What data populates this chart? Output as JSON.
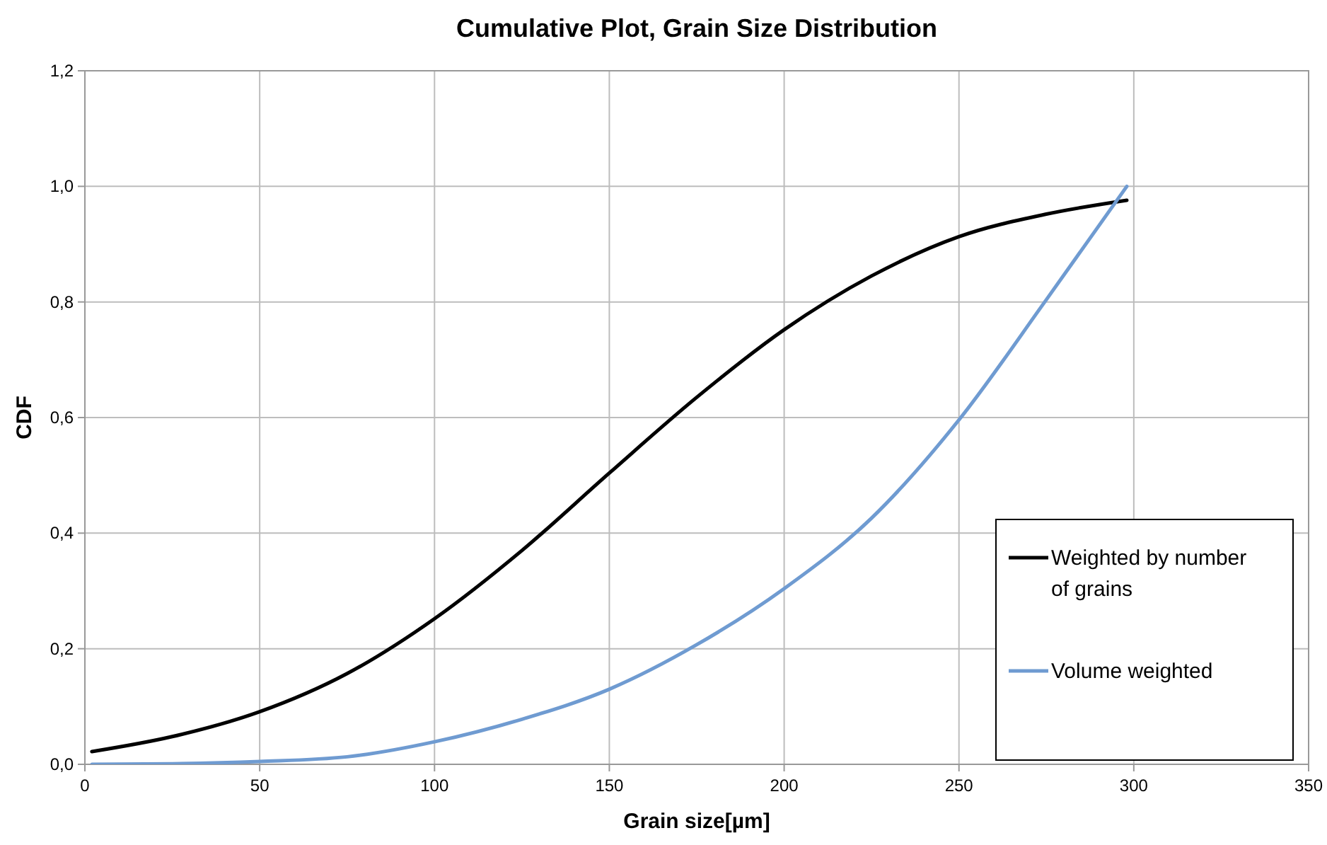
{
  "chart_data": {
    "type": "line",
    "title": "Cumulative Plot, Grain Size Distribution",
    "xlabel": "Grain size[µm]",
    "ylabel": "CDF",
    "xlim": [
      0,
      350
    ],
    "xticks": [
      0,
      50,
      100,
      150,
      200,
      250,
      300,
      350
    ],
    "ylim": [
      0,
      1.2
    ],
    "yticks": [
      {
        "value": 0,
        "label": "0,0"
      },
      {
        "value": 0.2,
        "label": "0,2"
      },
      {
        "value": 0.4,
        "label": "0,4"
      },
      {
        "value": 0.6,
        "label": "0,6"
      },
      {
        "value": 0.8,
        "label": "0,8"
      },
      {
        "value": 1,
        "label": "1,0"
      },
      {
        "value": 1.2,
        "label": "1,2"
      }
    ],
    "grid": true,
    "legend": "bottom right",
    "marker": "none",
    "line_style": "solid",
    "series": [
      {
        "name": "Weighted by number of grains",
        "color": "#000000",
        "x": [
          2,
          25,
          50,
          75,
          100,
          125,
          150,
          175,
          200,
          225,
          250,
          275,
          298
        ],
        "values": [
          0.022,
          0.048,
          0.091,
          0.157,
          0.252,
          0.37,
          0.504,
          0.635,
          0.752,
          0.845,
          0.913,
          0.952,
          0.976
        ]
      },
      {
        "name": "Volume weighted",
        "color": "#6f9bd1",
        "x": [
          2,
          25,
          50,
          75,
          100,
          125,
          150,
          175,
          200,
          225,
          250,
          275,
          298
        ],
        "values": [
          0,
          0.001,
          0.005,
          0.013,
          0.039,
          0.078,
          0.13,
          0.207,
          0.304,
          0.426,
          0.596,
          0.804,
          1.0
        ]
      }
    ]
  }
}
